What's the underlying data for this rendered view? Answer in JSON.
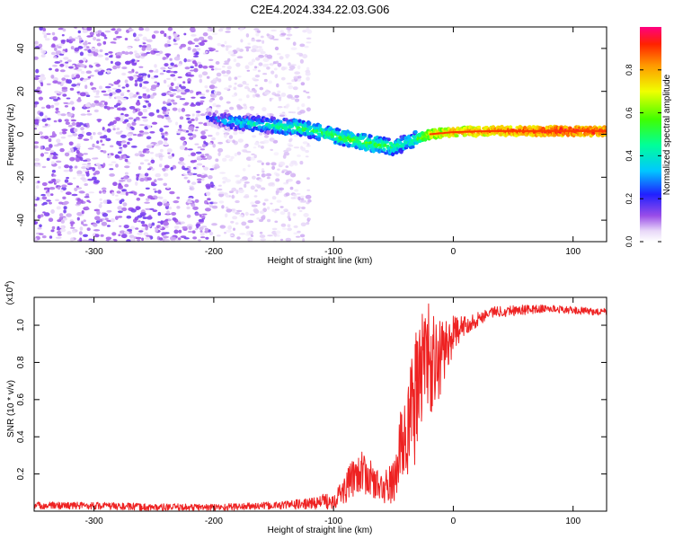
{
  "figure_title": "C2E4.2024.334.22.03.G06",
  "chart_data": [
    {
      "type": "heatmap",
      "xlabel": "Height of straight line (km)",
      "ylabel": "Frequency (Hz)",
      "xlim": [
        -350,
        128
      ],
      "ylim": [
        -50,
        50
      ],
      "xticks": [
        -300,
        -200,
        -100,
        0,
        100
      ],
      "yticks": [
        -40,
        -20,
        0,
        20,
        40
      ],
      "colorbar": {
        "label": "Normalized spectral amplitude",
        "range": [
          0,
          1
        ],
        "ticks": [
          0.0,
          0.2,
          0.4,
          0.6,
          0.8
        ]
      },
      "regions": [
        {
          "x": [
            -350,
            -200
          ],
          "freq": [
            -50,
            50
          ],
          "amplitude": "low (0.05-0.15), dense noise speckle"
        },
        {
          "x": [
            -200,
            -120
          ],
          "freq": [
            -50,
            50
          ],
          "amplitude": "very low (<0.05), sparse speckle"
        },
        {
          "x": [
            -120,
            128
          ],
          "freq": [
            -50,
            50
          ],
          "amplitude": "~0"
        }
      ],
      "signal_track": [
        {
          "x": -205,
          "freq": 8,
          "amplitude": 0.2
        },
        {
          "x": -190,
          "freq": 6,
          "amplitude": 0.35
        },
        {
          "x": -170,
          "freq": 5,
          "amplitude": 0.4
        },
        {
          "x": -150,
          "freq": 4,
          "amplitude": 0.45
        },
        {
          "x": -130,
          "freq": 3,
          "amplitude": 0.5
        },
        {
          "x": -110,
          "freq": 1,
          "amplitude": 0.5
        },
        {
          "x": -90,
          "freq": -2,
          "amplitude": 0.55
        },
        {
          "x": -70,
          "freq": -4,
          "amplitude": 0.55
        },
        {
          "x": -50,
          "freq": -6,
          "amplitude": 0.5
        },
        {
          "x": -35,
          "freq": -3,
          "amplitude": 0.45
        },
        {
          "x": -20,
          "freq": 0,
          "amplitude": 0.7
        },
        {
          "x": 0,
          "freq": 1,
          "amplitude": 0.8
        },
        {
          "x": 30,
          "freq": 1.5,
          "amplitude": 0.85
        },
        {
          "x": 60,
          "freq": 1.5,
          "amplitude": 0.9
        },
        {
          "x": 90,
          "freq": 1.5,
          "amplitude": 0.95
        },
        {
          "x": 128,
          "freq": 1.5,
          "amplitude": 0.9
        }
      ]
    },
    {
      "type": "line",
      "xlabel": "Height of straight line (km)",
      "ylabel": "SNR (10 * v/v)",
      "y_multiplier_label": "(x10",
      "y_multiplier_exp": "4",
      "y_multiplier_close": ")",
      "xlim": [
        -350,
        128
      ],
      "ylim": [
        0,
        1.15
      ],
      "xticks": [
        -300,
        -200,
        -100,
        0,
        100
      ],
      "yticks": [
        0.2,
        0.4,
        0.6,
        0.8,
        1.0
      ],
      "series": [
        {
          "color": "#ee2222",
          "x": [
            -350,
            -300,
            -250,
            -200,
            -150,
            -120,
            -100,
            -90,
            -80,
            -70,
            -60,
            -50,
            -45,
            -40,
            -35,
            -30,
            -25,
            -20,
            -15,
            -10,
            -5,
            0,
            10,
            20,
            30,
            50,
            80,
            100,
            128
          ],
          "y": [
            0.03,
            0.03,
            0.02,
            0.02,
            0.03,
            0.04,
            0.06,
            0.12,
            0.22,
            0.18,
            0.12,
            0.15,
            0.3,
            0.45,
            0.5,
            0.65,
            0.85,
            0.82,
            0.75,
            0.85,
            0.9,
            0.95,
            1.0,
            1.03,
            1.07,
            1.08,
            1.09,
            1.08,
            1.07
          ],
          "noise_amplitude": [
            0.02,
            0.02,
            0.02,
            0.02,
            0.02,
            0.03,
            0.05,
            0.08,
            0.12,
            0.1,
            0.08,
            0.12,
            0.2,
            0.3,
            0.35,
            0.35,
            0.3,
            0.3,
            0.3,
            0.2,
            0.15,
            0.1,
            0.05,
            0.04,
            0.03,
            0.03,
            0.02,
            0.02,
            0.02
          ]
        }
      ]
    }
  ]
}
